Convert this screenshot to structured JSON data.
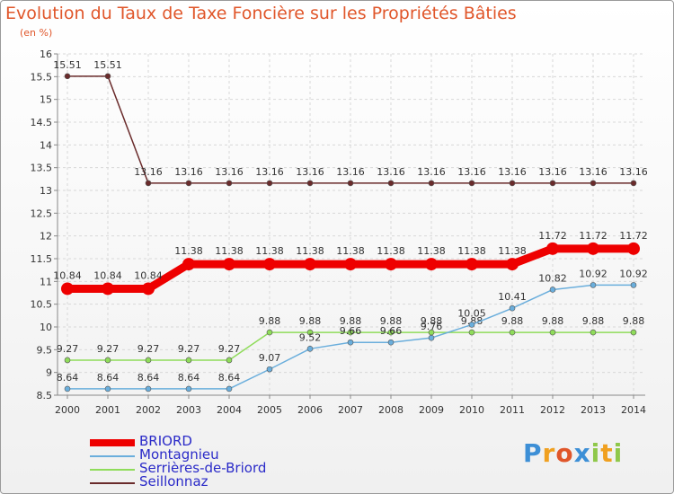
{
  "chart_data": {
    "type": "line",
    "title": "Evolution du Taux de Taxe Foncière sur les Propriétés Bâties",
    "ylabel": "(en %)",
    "xlabel": "",
    "ylim": [
      8.5,
      16
    ],
    "yticks": [
      "8.5",
      "9",
      "9.5",
      "10",
      "10.5",
      "11",
      "11.5",
      "12",
      "12.5",
      "13",
      "13.5",
      "14",
      "14.5",
      "15",
      "15.5",
      "16"
    ],
    "categories": [
      "2000",
      "2001",
      "2002",
      "2003",
      "2004",
      "2005",
      "2006",
      "2007",
      "2008",
      "2009",
      "2010",
      "2011",
      "2012",
      "2013",
      "2014"
    ],
    "grid": true,
    "series": [
      {
        "name": "Seillonnaz",
        "color": "#6a2b2b",
        "values": [
          15.51,
          15.51,
          13.16,
          13.16,
          13.16,
          13.16,
          13.16,
          13.16,
          13.16,
          13.16,
          13.16,
          13.16,
          13.16,
          13.16,
          13.16
        ],
        "labels": [
          "15.51",
          "15.51",
          "13.16",
          "13.16",
          "13.16",
          "13.16",
          "13.16",
          "13.16",
          "13.16",
          "13.16",
          "13.16",
          "13.16",
          "13.16",
          "13.16",
          "13.16"
        ]
      },
      {
        "name": "Serrières-de-Briord",
        "color": "#8fdc5a",
        "values": [
          9.27,
          9.27,
          9.27,
          9.27,
          9.27,
          9.88,
          9.88,
          9.88,
          9.88,
          9.88,
          9.88,
          9.88,
          9.88,
          9.88,
          9.88
        ],
        "labels": [
          "9.27",
          "9.27",
          "9.27",
          "9.27",
          "9.27",
          "9.88",
          "9.88",
          "9.88",
          "9.88",
          "9.88",
          "9.88",
          "9.88",
          "9.88",
          "9.88",
          "9.88"
        ]
      },
      {
        "name": "Montagnieu",
        "color": "#6aaedc",
        "values": [
          8.64,
          8.64,
          8.64,
          8.64,
          8.64,
          9.07,
          9.52,
          9.66,
          9.66,
          9.76,
          10.05,
          10.41,
          10.82,
          10.92,
          10.92
        ],
        "labels": [
          "8.64",
          "8.64",
          "8.64",
          "8.64",
          "8.64",
          "9.07",
          "9.52",
          "9.66",
          "9.66",
          "9.76",
          "10.05",
          "10.41",
          "10.82",
          "10.92",
          "10.92"
        ]
      },
      {
        "name": "BRIORD",
        "color": "#ee0000",
        "values": [
          10.84,
          10.84,
          10.84,
          11.38,
          11.38,
          11.38,
          11.38,
          11.38,
          11.38,
          11.38,
          11.38,
          11.38,
          11.72,
          11.72,
          11.72
        ],
        "labels": [
          "10.84",
          "10.84",
          "10.84",
          "11.38",
          "11.38",
          "11.38",
          "11.38",
          "11.38",
          "11.38",
          "11.38",
          "11.38",
          "11.38",
          "11.72",
          "11.72",
          "11.72"
        ]
      }
    ],
    "legend_order": [
      "BRIORD",
      "Montagnieu",
      "Serrières-de-Briord",
      "Seillonnaz"
    ]
  },
  "logo": {
    "letters": [
      {
        "ch": "P",
        "color": "#3d8fd6"
      },
      {
        "ch": "r",
        "color": "#f0a020"
      },
      {
        "ch": "o",
        "color": "#e0562a"
      },
      {
        "ch": "x",
        "color": "#3d8fd6"
      },
      {
        "ch": "i",
        "color": "#8fc84a"
      },
      {
        "ch": "t",
        "color": "#f0a020"
      },
      {
        "ch": "i",
        "color": "#8fc84a"
      }
    ]
  }
}
